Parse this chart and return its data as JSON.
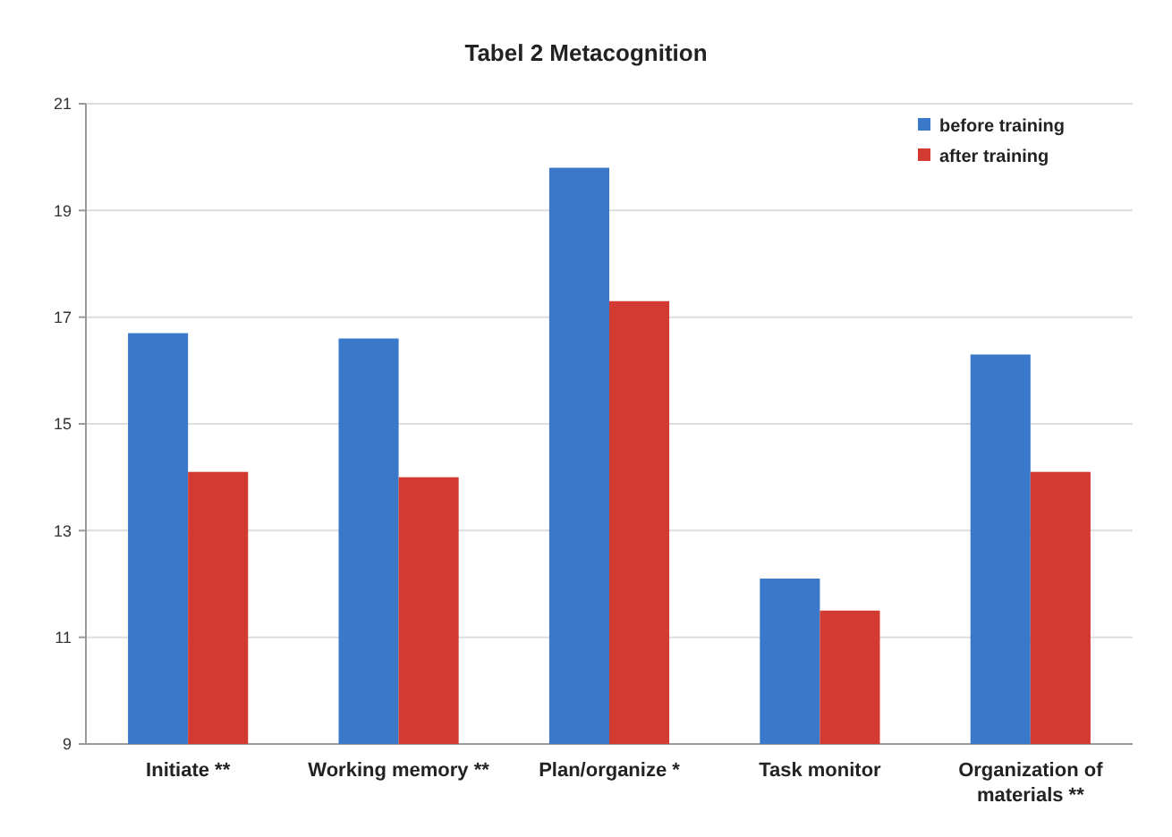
{
  "chart_data": {
    "type": "bar",
    "title": "Tabel 2 Metacognition",
    "categories": [
      "Initiate **",
      "Working memory **",
      "Plan/organize *",
      "Task monitor",
      "Organization of materials **"
    ],
    "series": [
      {
        "name": "before training",
        "color": "#3a78c9",
        "values": [
          16.7,
          16.6,
          19.8,
          12.1,
          16.3
        ]
      },
      {
        "name": "after training",
        "color": "#d23a32",
        "values": [
          14.1,
          14.0,
          17.3,
          11.5,
          14.1
        ]
      }
    ],
    "ylim": [
      9,
      21
    ],
    "yticks": [
      9,
      11,
      13,
      15,
      17,
      19,
      21
    ],
    "grid": "y",
    "legend": "top right"
  }
}
